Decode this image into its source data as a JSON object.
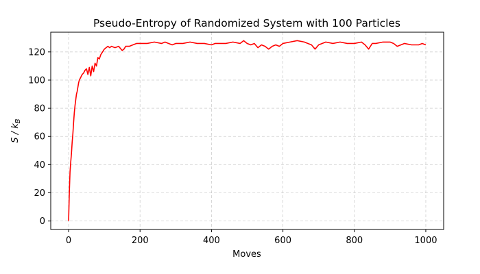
{
  "chart_data": {
    "type": "line",
    "title": "Pseudo-Entropy of Randomized System with 100 Particles",
    "xlabel": "Moves",
    "ylabel": "S / k",
    "ylabel_sub": "B",
    "xlim": [
      -50,
      1050
    ],
    "ylim": [
      -6,
      134
    ],
    "xticks": [
      0,
      200,
      400,
      600,
      800,
      1000
    ],
    "yticks": [
      0,
      20,
      40,
      60,
      80,
      100,
      120
    ],
    "grid": true,
    "series": [
      {
        "color": "#ff0000",
        "x": [
          0,
          2,
          4,
          6,
          8,
          10,
          12,
          14,
          16,
          18,
          20,
          22,
          24,
          26,
          28,
          30,
          34,
          38,
          42,
          46,
          50,
          54,
          58,
          62,
          66,
          70,
          74,
          78,
          82,
          86,
          90,
          95,
          100,
          105,
          110,
          115,
          120,
          130,
          140,
          150,
          155,
          160,
          170,
          180,
          190,
          200,
          220,
          240,
          260,
          270,
          280,
          290,
          300,
          320,
          340,
          360,
          380,
          400,
          410,
          420,
          440,
          460,
          480,
          490,
          500,
          510,
          520,
          530,
          540,
          550,
          560,
          570,
          580,
          590,
          600,
          620,
          640,
          660,
          670,
          680,
          690,
          700,
          720,
          740,
          760,
          780,
          800,
          820,
          830,
          840,
          850,
          860,
          880,
          900,
          910,
          920,
          940,
          960,
          980,
          990,
          1000
        ],
        "y": [
          0,
          20,
          35,
          42,
          48,
          56,
          62,
          70,
          77,
          82,
          86,
          90,
          92,
          95,
          98,
          100,
          102,
          104,
          105,
          107,
          108,
          104,
          109,
          103,
          110,
          106,
          112,
          110,
          116,
          115,
          118,
          120,
          122,
          123,
          124,
          123,
          124,
          123,
          124,
          121,
          122,
          124,
          124,
          125,
          126,
          126,
          126,
          127,
          126,
          127,
          126,
          125,
          126,
          126,
          127,
          126,
          126,
          125,
          126,
          126,
          126,
          127,
          126,
          128,
          126,
          125,
          126,
          123,
          125,
          124,
          122,
          124,
          125,
          124,
          126,
          127,
          128,
          127,
          126,
          125,
          122,
          125,
          127,
          126,
          127,
          126,
          126,
          127,
          125,
          122,
          126,
          126,
          127,
          127,
          126,
          124,
          126,
          125,
          125,
          126,
          125
        ]
      }
    ]
  }
}
